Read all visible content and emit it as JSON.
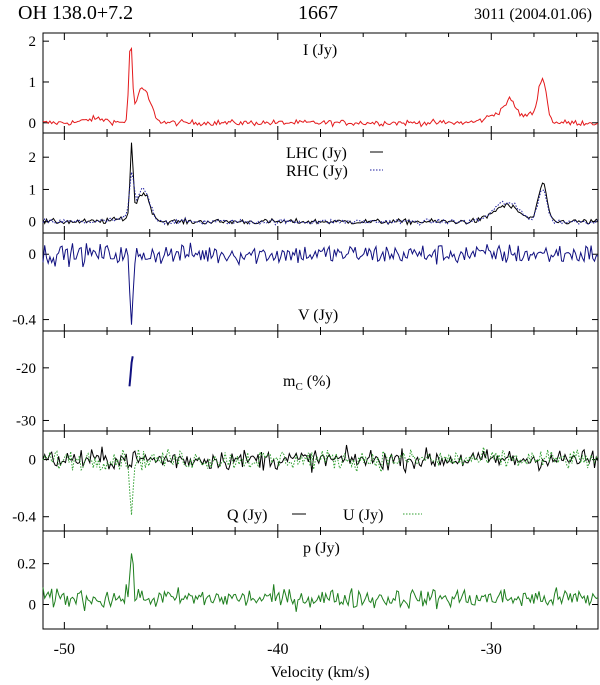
{
  "header": {
    "source": "OH 138.0+7.2",
    "frequency": "1667",
    "observation": "3011 (2004.01.06)"
  },
  "colors": {
    "I": "#e41a1c",
    "LHC": "#000000",
    "RHC": "#1f1f9f",
    "V": "#101080",
    "mC": "#101080",
    "Q": "#000000",
    "U": "#2f9f2f",
    "p": "#1f7f1f"
  },
  "chart_data": {
    "type": "line",
    "xlabel": "Velocity (km/s)",
    "xlim": [
      -51,
      -25
    ],
    "xticks": [
      "-50",
      "-40",
      "-30"
    ],
    "panels": [
      {
        "id": "I",
        "ylim": [
          -0.25,
          2.2
        ],
        "yticks": [
          "0",
          "1",
          "2"
        ],
        "ytick_values": [
          0,
          1,
          2
        ],
        "labels": [
          "I (Jy)"
        ],
        "series": [
          {
            "name": "I (Jy)",
            "style": "solid",
            "baseline": 0.0,
            "noise": 0.05,
            "features": [
              [
                -48.5,
                0.1,
                0.5
              ],
              [
                -46.9,
                1.85,
                0.08
              ],
              [
                -46.5,
                0.35,
                0.25
              ],
              [
                -46.2,
                0.6,
                0.3
              ],
              [
                -29.5,
                0.25,
                0.6
              ],
              [
                -29.1,
                0.35,
                0.25
              ],
              [
                -28.0,
                0.2,
                0.4
              ],
              [
                -27.6,
                1.0,
                0.18
              ]
            ]
          }
        ]
      },
      {
        "id": "LHC_RHC",
        "ylim": [
          -0.35,
          2.75
        ],
        "yticks": [
          "0",
          "1",
          "2"
        ],
        "ytick_values": [
          0,
          1,
          2
        ],
        "labels": [
          "LHC (Jy)",
          "RHC (Jy)"
        ],
        "series": [
          {
            "name": "LHC (Jy)",
            "style": "solid",
            "baseline": 0.0,
            "noise": 0.06,
            "features": [
              [
                -47.0,
                0.1,
                0.6
              ],
              [
                -46.85,
                2.2,
                0.07
              ],
              [
                -46.3,
                0.85,
                0.3
              ],
              [
                -29.3,
                0.5,
                0.6
              ],
              [
                -27.6,
                1.15,
                0.2
              ]
            ]
          },
          {
            "name": "RHC (Jy)",
            "style": "dotted",
            "baseline": 0.0,
            "noise": 0.06,
            "features": [
              [
                -47.0,
                0.1,
                0.6
              ],
              [
                -46.85,
                1.25,
                0.1
              ],
              [
                -46.3,
                0.95,
                0.3
              ],
              [
                -29.3,
                0.6,
                0.6
              ],
              [
                -27.6,
                1.0,
                0.2
              ]
            ]
          }
        ]
      },
      {
        "id": "V",
        "ylim": [
          -0.47,
          0.13
        ],
        "yticks": [
          "0",
          "-0.4"
        ],
        "ytick_values": [
          0,
          -0.4
        ],
        "labels": [
          "V (Jy)"
        ],
        "series": [
          {
            "name": "V (Jy)",
            "style": "solid",
            "baseline": 0.0,
            "noise": 0.045,
            "features": [
              [
                -46.85,
                -0.42,
                0.08
              ]
            ]
          }
        ]
      },
      {
        "id": "mC",
        "ylim": [
          -32,
          -13
        ],
        "yticks": [
          "-20",
          "-30"
        ],
        "ytick_values": [
          -20,
          -30
        ],
        "labels": [
          "mC (%)"
        ],
        "series": [
          {
            "name": "mC (%)",
            "style": "solid",
            "segment": [
              [
                -46.95,
                -23.5
              ],
              [
                -46.9,
                -21.5
              ],
              [
                -46.85,
                -19
              ],
              [
                -46.8,
                -17.8
              ]
            ]
          }
        ]
      },
      {
        "id": "QU",
        "ylim": [
          -0.5,
          0.2
        ],
        "yticks": [
          "0",
          "-0.4"
        ],
        "ytick_values": [
          0,
          -0.4
        ],
        "labels": [
          "Q (Jy)",
          "U (Jy)"
        ],
        "series": [
          {
            "name": "Q (Jy)",
            "style": "solid",
            "baseline": 0.0,
            "noise": 0.05,
            "features": []
          },
          {
            "name": "U (Jy)",
            "style": "dotted",
            "baseline": 0.0,
            "noise": 0.05,
            "features": [
              [
                -46.85,
                -0.32,
                0.08
              ]
            ]
          }
        ]
      },
      {
        "id": "p",
        "ylim": [
          -0.12,
          0.36
        ],
        "yticks": [
          "0.2",
          "0"
        ],
        "ytick_values": [
          0.2,
          0
        ],
        "labels": [
          "p (Jy)"
        ],
        "series": [
          {
            "name": "p (Jy)",
            "style": "solid",
            "baseline": 0.03,
            "noise": 0.035,
            "positive": true,
            "features": [
              [
                -46.85,
                0.26,
                0.07
              ]
            ]
          }
        ]
      }
    ]
  }
}
